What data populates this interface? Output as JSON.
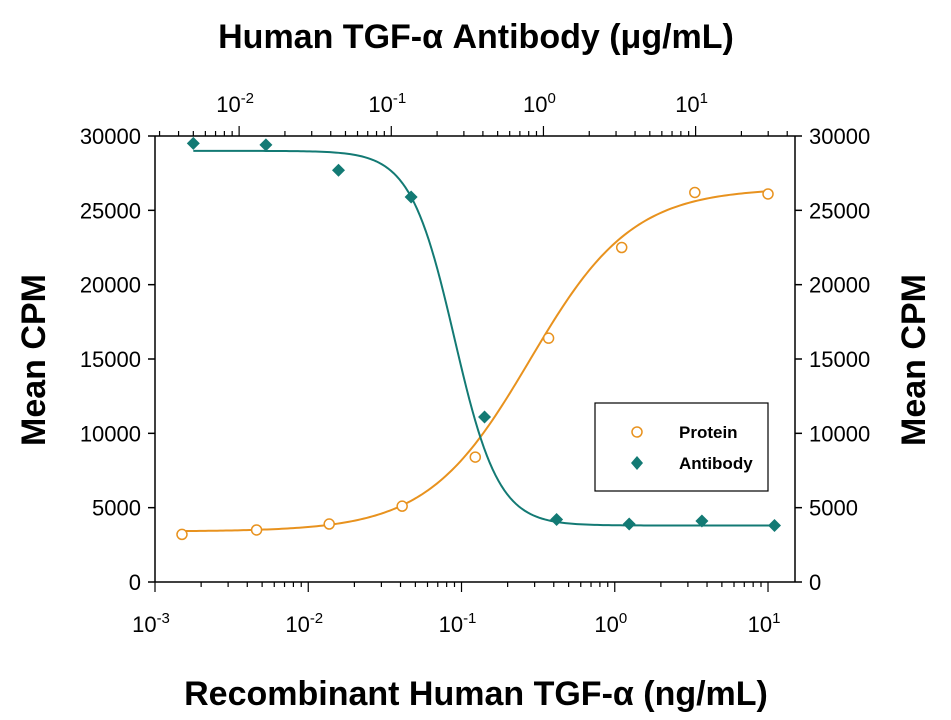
{
  "chart_data": {
    "type": "scatter",
    "title_top": "Human TGF-α Antibody (μg/mL)",
    "xlabel": "Recombinant Human TGF-α (ng/mL)",
    "ylabel_left": "Mean CPM",
    "ylabel_right": "Mean CPM",
    "x_scale": "log",
    "xlim": [
      0.001,
      15
    ],
    "x2_scale": "log",
    "x2lim": [
      0.0028,
      45
    ],
    "ylim": [
      0,
      30000
    ],
    "yticks": [
      0,
      5000,
      10000,
      15000,
      20000,
      25000,
      30000
    ],
    "xtick_labels": [
      {
        "base": "10",
        "exp": "-3",
        "value": 0.001
      },
      {
        "base": "10",
        "exp": "-2",
        "value": 0.01
      },
      {
        "base": "10",
        "exp": "-1",
        "value": 0.1
      },
      {
        "base": "10",
        "exp": "0",
        "value": 1
      },
      {
        "base": "10",
        "exp": "1",
        "value": 10
      }
    ],
    "x2tick_labels": [
      {
        "base": "10",
        "exp": "-2",
        "value": 0.01
      },
      {
        "base": "10",
        "exp": "-1",
        "value": 0.1
      },
      {
        "base": "10",
        "exp": "0",
        "value": 1
      },
      {
        "base": "10",
        "exp": "1",
        "value": 10
      }
    ],
    "legend_position": "lower-right",
    "series": [
      {
        "name": "Protein",
        "axis": "bottom",
        "marker": "open-circle",
        "color": "#e8921e",
        "x": [
          0.0015,
          0.0046,
          0.0137,
          0.041,
          0.123,
          0.37,
          1.11,
          3.33,
          10
        ],
        "y": [
          3200,
          3500,
          3900,
          5100,
          8400,
          16400,
          22500,
          26200,
          26100
        ],
        "fit": {
          "bottom": 3400,
          "top": 26500,
          "ec50": 0.28,
          "hill": 1.3
        }
      },
      {
        "name": "Antibody",
        "axis": "top",
        "marker": "filled-diamond",
        "color": "#137a74",
        "x": [
          0.005,
          0.015,
          0.045,
          0.135,
          0.41,
          1.22,
          3.66,
          11,
          33
        ],
        "y": [
          29500,
          29400,
          27700,
          25900,
          11100,
          4200,
          3900,
          4100,
          3800
        ],
        "fit": {
          "bottom": 3800,
          "top": 29000,
          "ec50": 0.26,
          "hill": 3.0
        }
      }
    ]
  }
}
